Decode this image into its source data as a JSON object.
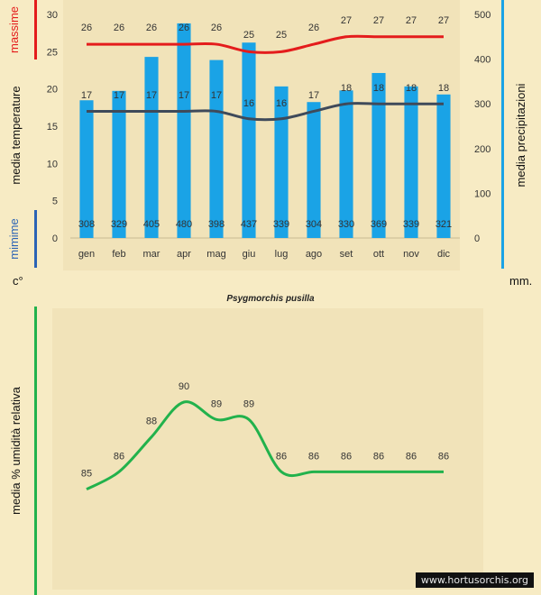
{
  "chart_data": [
    {
      "type": "bar+line",
      "title": "",
      "categories": [
        "gen",
        "feb",
        "mar",
        "apr",
        "mag",
        "giu",
        "lug",
        "ago",
        "set",
        "ott",
        "nov",
        "dic"
      ],
      "series": [
        {
          "name": "media precipitazioni",
          "kind": "bar",
          "axis": "right",
          "unit": "mm.",
          "values": [
            308,
            329,
            405,
            480,
            398,
            437,
            339,
            304,
            330,
            369,
            339,
            321
          ]
        },
        {
          "name": "massime",
          "kind": "line",
          "axis": "left",
          "unit": "c°",
          "values": [
            26,
            26,
            26,
            26,
            26,
            25,
            25,
            26,
            27,
            27,
            27,
            27
          ]
        },
        {
          "name": "mimime",
          "kind": "line",
          "axis": "left",
          "unit": "c°",
          "values": [
            17,
            17,
            17,
            17,
            17,
            16,
            16,
            17,
            18,
            18,
            18,
            18
          ]
        }
      ],
      "y_left": {
        "label": "media  temperature",
        "unit": "c°",
        "ylim": [
          0,
          30
        ],
        "ticks": [
          0,
          5,
          10,
          15,
          20,
          25,
          30
        ]
      },
      "y_right": {
        "label": "media  precipitazioni",
        "unit": "mm.",
        "ylim": [
          0,
          500
        ],
        "ticks": [
          0,
          100,
          200,
          300,
          400,
          500
        ]
      },
      "legend": {
        "max_label": "massime",
        "min_label": "mimime"
      },
      "colors": {
        "bars": "#1aa3e6",
        "max_line": "#e41c1c",
        "min_line": "#3f4a5a"
      }
    },
    {
      "type": "line",
      "title": "Psygmorchis pusilla",
      "categories": [
        "gen",
        "feb",
        "mar",
        "apr",
        "mag",
        "giu",
        "lug",
        "ago",
        "set",
        "ott",
        "nov",
        "dic"
      ],
      "series": [
        {
          "name": "media % umidità relativa",
          "values": [
            85,
            86,
            88,
            90,
            89,
            89,
            86,
            86,
            86,
            86,
            86,
            86
          ]
        }
      ],
      "ylabel": "media %  umidità relativa",
      "colors": {
        "line": "#22b24c",
        "axis_bar": "#22b24c"
      }
    }
  ],
  "watermark": "www.hortusorchis.org",
  "colors": {
    "background": "#f7ebc4",
    "panel": "#f1e3b9",
    "left_blue": "#2b63b5",
    "right_blue": "#1aa3e6"
  }
}
